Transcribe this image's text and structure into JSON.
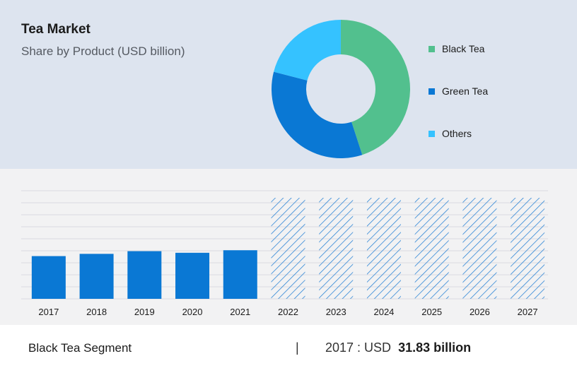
{
  "header": {
    "title": "Tea Market",
    "subtitle": "Share by Product (USD billion)"
  },
  "footer": {
    "segment": "Black Tea Segment",
    "divider": "|",
    "year_prefix": "2017 : USD",
    "value": "31.83 billion"
  },
  "colors": {
    "black_tea": "#52c08e",
    "green_tea": "#0a78d4",
    "others": "#35c2ff",
    "bar": "#0a78d4",
    "forecast_hatch": "#2f86d6"
  },
  "chart_data": [
    {
      "type": "pie",
      "donut": true,
      "title": "",
      "legend": "right",
      "series": [
        {
          "name": "Black Tea",
          "value": 45
        },
        {
          "name": "Green Tea",
          "value": 34
        },
        {
          "name": "Others",
          "value": 21
        }
      ]
    },
    {
      "type": "bar",
      "categories": [
        "2017",
        "2018",
        "2019",
        "2020",
        "2021",
        "2022",
        "2023",
        "2024",
        "2025",
        "2026",
        "2027"
      ],
      "values": [
        31.83,
        33.5,
        35.5,
        34.3,
        36.2,
        null,
        null,
        null,
        null,
        null,
        null
      ],
      "forecast": [
        false,
        false,
        false,
        false,
        false,
        true,
        true,
        true,
        true,
        true,
        true
      ],
      "ylim": [
        0,
        80
      ],
      "grid": true,
      "xlabel": "",
      "ylabel": ""
    }
  ]
}
